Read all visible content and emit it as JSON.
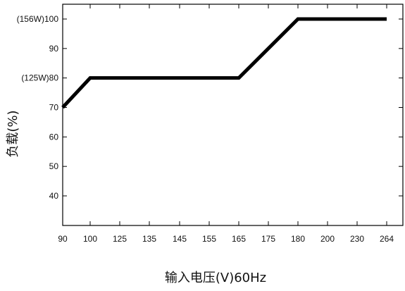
{
  "chart_data": {
    "type": "line",
    "title": "",
    "xlabel": "输入电压(V)60Hz",
    "ylabel": "负载(%)",
    "x_tick_labels": [
      "90",
      "100",
      "125",
      "135",
      "145",
      "155",
      "165",
      "175",
      "180",
      "200",
      "230",
      "264"
    ],
    "y_ticks": [
      {
        "value": 100,
        "label": "(156W)100"
      },
      {
        "value": 90,
        "label": "90"
      },
      {
        "value": 80,
        "label": "(125W)80"
      },
      {
        "value": 70,
        "label": "70"
      },
      {
        "value": 60,
        "label": "60"
      },
      {
        "value": 50,
        "label": "50"
      },
      {
        "value": 40,
        "label": "40"
      }
    ],
    "ylim": [
      30,
      105
    ],
    "grid": false,
    "series": [
      {
        "x": [
          "90",
          "100",
          "165",
          "180",
          "264"
        ],
        "y": [
          70,
          80,
          80,
          100,
          100
        ]
      }
    ],
    "line_color": "#000000"
  }
}
